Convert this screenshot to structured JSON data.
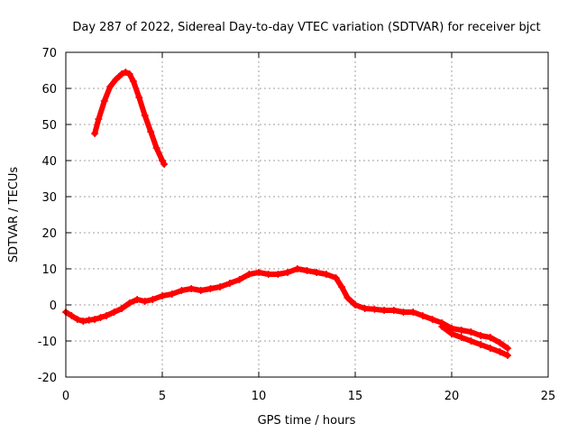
{
  "chart_data": {
    "type": "scatter",
    "title": "Day 287 of 2022, Sidereal Day-to-day VTEC variation (SDTVAR) for receiver bjct",
    "xlabel": "GPS time / hours",
    "ylabel": "SDTVAR / TECUs",
    "xlim": [
      0,
      25
    ],
    "ylim": [
      -20,
      70
    ],
    "xticks": [
      0,
      5,
      10,
      15,
      20,
      25
    ],
    "yticks": [
      -20,
      -10,
      0,
      10,
      20,
      30,
      40,
      50,
      60,
      70
    ],
    "grid": true,
    "marker": "plus",
    "color": "#ff0000",
    "series": [
      {
        "name": "segment-1",
        "x": [
          1.5,
          1.7,
          2.0,
          2.3,
          2.6,
          2.9,
          3.1,
          3.3,
          3.5,
          3.8,
          4.1,
          4.4,
          4.7,
          5.0,
          5.1
        ],
        "y": [
          47.5,
          51.5,
          56.5,
          60.5,
          62.5,
          64.0,
          64.5,
          64.0,
          62.0,
          57.5,
          52.5,
          48.0,
          43.5,
          40.0,
          39.0
        ]
      },
      {
        "name": "segment-2",
        "x": [
          0.0,
          0.3,
          0.6,
          0.9,
          1.2,
          1.5,
          1.8,
          2.1,
          2.5,
          2.9,
          3.3,
          3.7,
          4.1,
          4.5,
          5.0,
          5.5,
          6.0,
          6.5,
          7.0,
          7.5,
          8.0,
          8.5,
          9.0,
          9.5,
          10.0,
          10.5,
          11.0,
          11.5,
          12.0,
          12.5,
          13.0,
          13.5,
          14.0,
          14.3,
          14.6,
          15.0,
          15.5,
          16.0,
          16.5,
          17.0,
          17.5,
          18.0,
          18.5,
          19.0,
          19.5,
          20.0,
          20.5,
          21.0,
          21.5,
          22.0,
          22.5,
          22.9
        ],
        "y": [
          -2.0,
          -3.0,
          -4.0,
          -4.5,
          -4.2,
          -4.0,
          -3.5,
          -3.0,
          -2.0,
          -1.0,
          0.5,
          1.5,
          1.0,
          1.5,
          2.5,
          3.0,
          4.0,
          4.5,
          4.0,
          4.5,
          5.0,
          6.0,
          7.0,
          8.5,
          9.0,
          8.5,
          8.5,
          9.0,
          10.0,
          9.5,
          9.0,
          8.5,
          7.5,
          5.0,
          2.0,
          0.0,
          -1.0,
          -1.2,
          -1.5,
          -1.5,
          -2.0,
          -2.0,
          -3.0,
          -4.0,
          -5.0,
          -6.5,
          -7.0,
          -7.5,
          -8.5,
          -9.0,
          -10.5,
          -12.0
        ]
      },
      {
        "name": "segment-3",
        "x": [
          19.5,
          20.0,
          20.5,
          21.0,
          21.5,
          22.0,
          22.5,
          22.9
        ],
        "y": [
          -6.0,
          -8.0,
          -9.0,
          -10.0,
          -11.0,
          -12.0,
          -13.0,
          -14.0
        ]
      }
    ]
  }
}
